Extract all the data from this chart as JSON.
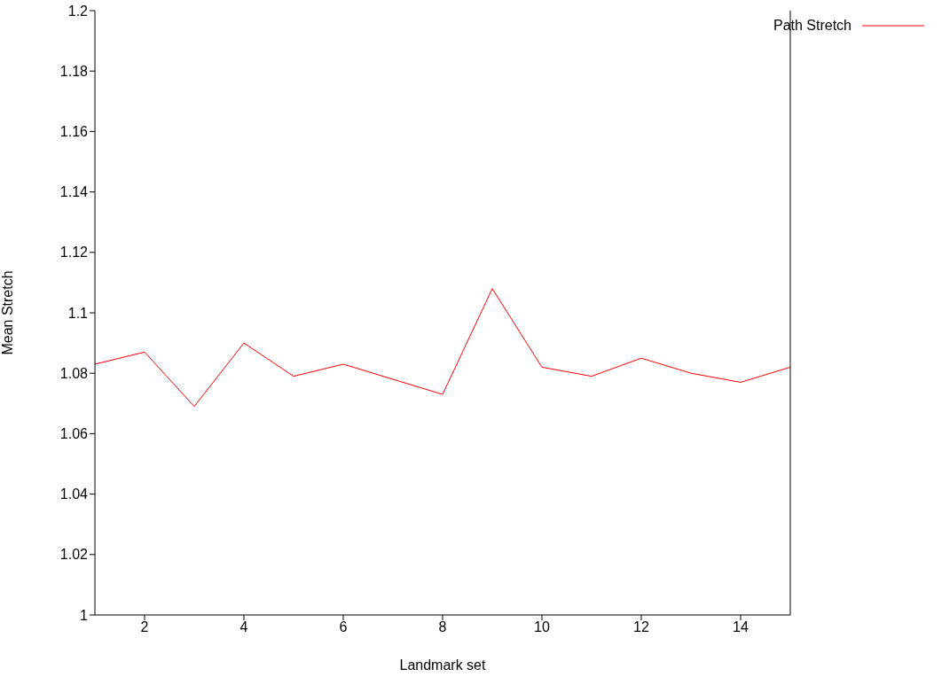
{
  "chart_data": {
    "type": "line",
    "xlabel": "Landmark set",
    "ylabel": "Mean Stretch",
    "x": [
      1,
      2,
      3,
      4,
      5,
      6,
      7,
      8,
      9,
      10,
      11,
      12,
      13,
      14,
      15
    ],
    "series": [
      {
        "name": "Path Stretch",
        "color": "#ff0000",
        "values": [
          1.083,
          1.087,
          1.069,
          1.09,
          1.079,
          1.083,
          1.078,
          1.073,
          1.108,
          1.082,
          1.079,
          1.085,
          1.08,
          1.077,
          1.082
        ]
      }
    ],
    "xlim": [
      1,
      15
    ],
    "xticks": [
      2,
      4,
      6,
      8,
      10,
      12,
      14
    ],
    "ylim": [
      1,
      1.2
    ],
    "yticks": [
      1,
      1.02,
      1.04,
      1.06,
      1.08,
      1.1,
      1.12,
      1.14,
      1.16,
      1.18,
      1.2
    ],
    "grid": false,
    "legend": "top right",
    "marker": "none",
    "line_style": "solid"
  }
}
